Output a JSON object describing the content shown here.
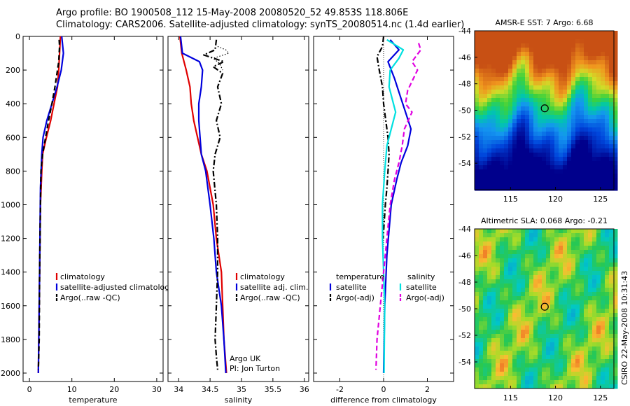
{
  "header": {
    "line1": "Argo profile: BO 1900508_112 15-May-2008 20080520_52 49.853S 118.806E",
    "line2": "Climatology: CARS2006. Satellite-adjusted climatology: synTS_20080514.nc (1.4d earlier)"
  },
  "side_label": "CSIRO 22-May-2008 10:31:43",
  "chart_data": [
    {
      "type": "line",
      "id": "temperature",
      "xlabel": "temperature",
      "ylabel": "",
      "xlim": [
        -1.5,
        31.5
      ],
      "ylim": [
        2050,
        0
      ],
      "xticks": [
        0,
        10,
        20,
        30
      ],
      "yticks": [
        0,
        200,
        400,
        600,
        800,
        1000,
        1200,
        1400,
        1600,
        1800,
        2000
      ],
      "legend": [
        "climatology",
        "satellite-adjusted climatology",
        "Argo(..raw -QC)"
      ],
      "series": [
        {
          "name": "climatology",
          "color": "#e00000",
          "dash": "solid",
          "x": [
            7.3,
            7.1,
            6.9,
            6.6,
            5.8,
            5.0,
            4.0,
            3.1,
            2.9,
            2.6,
            2.4,
            2.2,
            2.1
          ],
          "y": [
            0,
            100,
            200,
            300,
            400,
            500,
            600,
            700,
            800,
            1000,
            1400,
            1800,
            2000
          ]
        },
        {
          "name": "satellite-adjusted climatology",
          "color": "#0000dd",
          "dash": "solid",
          "x": [
            7.6,
            7.8,
            8.0,
            7.5,
            6.5,
            5.3,
            4.1,
            3.2,
            2.9,
            2.6,
            2.4,
            2.2,
            2.1
          ],
          "y": [
            0,
            50,
            100,
            200,
            300,
            400,
            500,
            600,
            700,
            900,
            1400,
            1800,
            2000
          ]
        },
        {
          "name": "Argo(..raw -QC)",
          "color": "#000000",
          "dash": "dash",
          "x": [
            7.0,
            7.1,
            7.0,
            6.9,
            6.6,
            6.0,
            5.3,
            4.5,
            3.8,
            3.1,
            2.7,
            2.6,
            2.4,
            2.3,
            2.1
          ],
          "y": [
            20,
            60,
            100,
            150,
            200,
            300,
            400,
            500,
            600,
            700,
            800,
            1000,
            1400,
            1800,
            1980
          ]
        }
      ]
    },
    {
      "type": "line",
      "id": "salinity",
      "xlabel": "salinity",
      "xlim": [
        33.83,
        36.07
      ],
      "ylim": [
        2050,
        0
      ],
      "xticks": [
        34,
        34.5,
        35,
        35.5,
        36
      ],
      "legend": [
        "climatology",
        "satellite adj. clim.",
        "Argo(..raw -QC)"
      ],
      "annotation": [
        "Argo UK",
        "PI: Jon Turton"
      ],
      "series": [
        {
          "name": "climatology",
          "color": "#e00000",
          "dash": "solid",
          "x": [
            34.02,
            34.05,
            34.12,
            34.15,
            34.18,
            34.2,
            34.24,
            34.3,
            34.36,
            34.45,
            34.55,
            34.6,
            34.68,
            34.72,
            34.76
          ],
          "y": [
            0,
            100,
            200,
            250,
            300,
            400,
            500,
            600,
            700,
            800,
            1000,
            1200,
            1400,
            1800,
            2000
          ]
        },
        {
          "name": "satellite adj. clim.",
          "color": "#0000dd",
          "dash": "solid",
          "x": [
            34.03,
            34.06,
            34.33,
            34.38,
            34.36,
            34.32,
            34.32,
            34.34,
            34.36,
            34.43,
            34.5,
            34.56,
            34.6,
            34.68,
            34.72,
            34.75
          ],
          "y": [
            0,
            100,
            150,
            200,
            300,
            400,
            500,
            600,
            700,
            800,
            1000,
            1200,
            1400,
            1600,
            1800,
            2000
          ]
        },
        {
          "name": "Argo(..raw -QC)",
          "color": "#000000",
          "dash": "dashdot",
          "x": [
            34.6,
            34.58,
            34.4,
            34.72,
            34.55,
            34.7,
            34.62,
            34.68,
            34.6,
            34.66,
            34.58,
            34.55,
            34.6,
            34.62,
            34.62,
            34.6,
            34.58,
            34.6,
            34.62
          ],
          "y": [
            20,
            80,
            110,
            150,
            180,
            220,
            300,
            400,
            500,
            600,
            700,
            800,
            1000,
            1200,
            1400,
            1600,
            1800,
            1900,
            1980
          ]
        },
        {
          "name": "Argo (dotted)",
          "color": "#000000",
          "dash": "dot",
          "x": [
            34.62,
            34.75,
            34.8,
            34.55,
            34.65,
            34.7
          ],
          "y": [
            60,
            80,
            100,
            130,
            160,
            200
          ]
        }
      ]
    },
    {
      "type": "line",
      "id": "difference",
      "xlabel": "difference from climatology",
      "xlim": [
        -3.2,
        3.2
      ],
      "ylim": [
        2050,
        0
      ],
      "xticks": [
        -2,
        0,
        2
      ],
      "legend_groups": [
        {
          "header": "temperature",
          "items": [
            "satellite",
            "Argo(-adj)"
          ]
        },
        {
          "header": "salinity",
          "items": [
            "satellite",
            "Argo(-adj)"
          ]
        }
      ],
      "series": [
        {
          "name": "temperature satellite",
          "color": "#0000dd",
          "dash": "solid",
          "x": [
            0.3,
            0.7,
            0.2,
            0.5,
            0.75,
            1.0,
            1.25,
            1.1,
            0.8,
            0.6,
            0.35,
            0.15,
            0.05,
            0.0
          ],
          "y": [
            20,
            80,
            150,
            250,
            350,
            450,
            550,
            650,
            750,
            850,
            1000,
            1300,
            1600,
            2000
          ]
        },
        {
          "name": "temperature Argo(-adj)",
          "color": "#000000",
          "dash": "dashdot",
          "x": [
            0.0,
            -0.05,
            -0.3,
            -0.2,
            -0.05,
            0.0,
            0.1,
            0.2,
            0.25,
            0.2,
            0.15,
            0.08,
            0.03,
            -0.02
          ],
          "y": [
            0,
            60,
            120,
            200,
            300,
            400,
            500,
            600,
            700,
            800,
            900,
            1000,
            1100,
            1200
          ]
        },
        {
          "name": "salinity satellite",
          "color": "#00e0e0",
          "dash": "solid",
          "x": [
            0.15,
            0.9,
            0.7,
            0.3,
            0.25,
            0.55,
            0.35,
            0.15,
            0.05,
            -0.05,
            -0.05,
            0.05,
            0.02
          ],
          "y": [
            20,
            80,
            130,
            200,
            300,
            450,
            550,
            650,
            800,
            1000,
            1200,
            1600,
            2000
          ]
        },
        {
          "name": "salinity Argo(-adj)",
          "color": "#e000e0",
          "dash": "dash",
          "x": [
            1.6,
            1.7,
            1.3,
            1.55,
            1.1,
            1.0,
            1.3,
            0.95,
            0.85,
            0.7,
            0.5,
            0.3,
            0.15,
            0.0,
            -0.15,
            -0.3,
            -0.35
          ],
          "y": [
            40,
            80,
            150,
            200,
            320,
            400,
            450,
            550,
            650,
            750,
            850,
            1000,
            1200,
            1400,
            1600,
            1800,
            1980
          ]
        }
      ]
    },
    {
      "type": "heatmap",
      "id": "sst-map",
      "title": "AMSR-E SST: 7 Argo: 6.68",
      "xlim": [
        111,
        126.5
      ],
      "ylim": [
        -56,
        -44
      ],
      "xticks": [
        115,
        120,
        125
      ],
      "yticks": [
        -44,
        -46,
        -48,
        -50,
        -52,
        -54
      ],
      "marker": {
        "lon": 118.806,
        "lat": -49.853
      }
    },
    {
      "type": "heatmap",
      "id": "sla-map",
      "title": "Altimetric SLA: 0.068 Argo: -0.21",
      "xlim": [
        111,
        126.5
      ],
      "ylim": [
        -56,
        -44
      ],
      "xticks": [
        115,
        120,
        125
      ],
      "yticks": [
        -44,
        -46,
        -48,
        -50,
        -52,
        -54
      ],
      "marker": {
        "lon": 118.806,
        "lat": -49.853
      }
    }
  ]
}
